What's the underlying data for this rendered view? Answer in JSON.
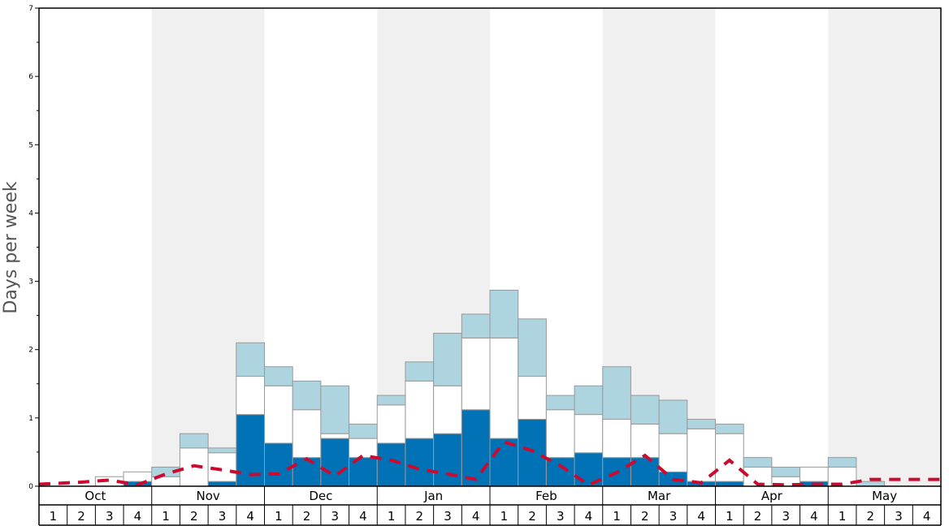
{
  "chart_data": {
    "type": "bar",
    "stacked": true,
    "title": "",
    "xlabel": "",
    "ylabel": "Days per week",
    "ylim": [
      0,
      7
    ],
    "yticks": [
      "0",
      "1",
      "2",
      "3",
      "4",
      "5",
      "6",
      "7"
    ],
    "months": [
      "Oct",
      "Nov",
      "Dec",
      "Jan",
      "Feb",
      "Mar",
      "Apr",
      "May"
    ],
    "weeks_per_month": [
      "1",
      "2",
      "3",
      "4"
    ],
    "grid": false,
    "alternating_month_shading": true,
    "colors": {
      "series_dark": "#0072b5",
      "series_white": "#ffffff",
      "series_light": "#aed4e0",
      "line": "#cc0a2f",
      "shade": "#f0f0f0",
      "bar_border": "#999999"
    },
    "series": [
      {
        "color": "#0072b5",
        "values": [
          0,
          0,
          0,
          0.07,
          0,
          0,
          0.07,
          1.05,
          0.63,
          0.42,
          0.7,
          0.42,
          0.63,
          0.7,
          0.77,
          1.12,
          0.7,
          0.98,
          0.42,
          0.49,
          0.42,
          0.42,
          0.21,
          0.07,
          0.07,
          0,
          0,
          0.07,
          0,
          0,
          0,
          0
        ]
      },
      {
        "color": "#ffffff",
        "values": [
          0,
          0,
          0.14,
          0.14,
          0.14,
          0.56,
          0.42,
          0.56,
          0.84,
          0.7,
          0.07,
          0.28,
          0.56,
          0.84,
          0.7,
          1.05,
          1.47,
          0.63,
          0.7,
          0.56,
          0.56,
          0.49,
          0.56,
          0.77,
          0.7,
          0.28,
          0.14,
          0.21,
          0.28,
          0,
          0,
          0
        ]
      },
      {
        "color": "#aed4e0",
        "values": [
          0,
          0,
          0,
          0,
          0.14,
          0.21,
          0.07,
          0.49,
          0.28,
          0.42,
          0.7,
          0.21,
          0.14,
          0.28,
          0.77,
          0.35,
          0.7,
          0.84,
          0.21,
          0.42,
          0.77,
          0.42,
          0.49,
          0.14,
          0.14,
          0.14,
          0.14,
          0,
          0.14,
          0.07,
          0,
          0
        ]
      }
    ],
    "line": {
      "style": "dashed",
      "color": "#cc0a2f",
      "values": [
        0.03,
        0.06,
        0.09,
        0.02,
        0.18,
        0.3,
        0.24,
        0.17,
        0.18,
        0.4,
        0.15,
        0.45,
        0.38,
        0.25,
        0.18,
        0.1,
        0.65,
        0.52,
        0.3,
        0.02,
        0.2,
        0.45,
        0.1,
        0.05,
        0.38,
        0.03,
        0.02,
        0.03,
        0.03,
        0.1,
        0.1,
        0.1
      ]
    }
  }
}
